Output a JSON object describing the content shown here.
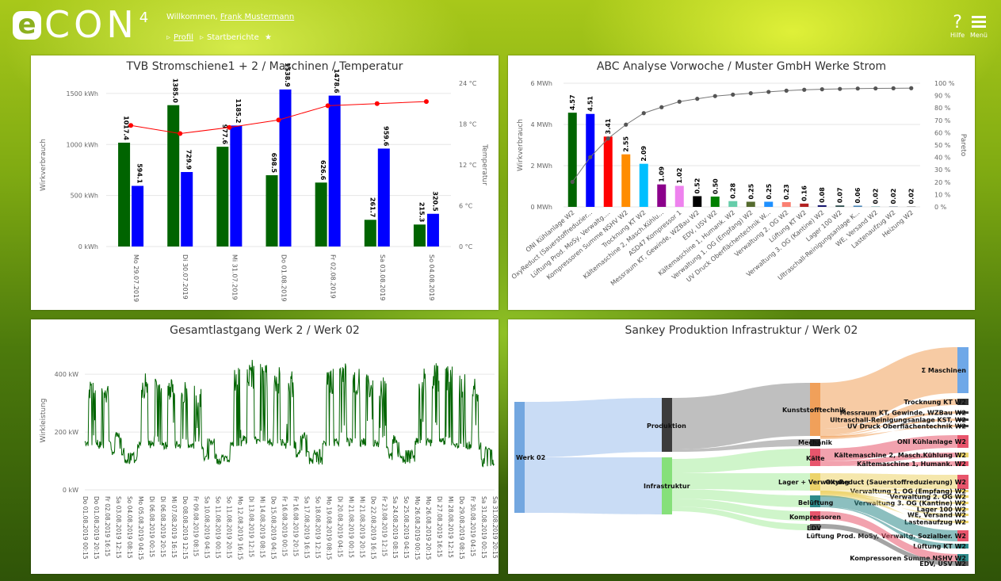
{
  "header": {
    "logo_main": "CON",
    "logo_e": "e",
    "logo_sup": "4",
    "welcome_prefix": "Willkommen, ",
    "user_name": "Frank Mustermann",
    "breadcrumb_profile": "Profil",
    "breadcrumb_current": "Startberichte",
    "star": "★",
    "help_icon": "?",
    "help_label": "Hilfe",
    "menu_label": "Menü"
  },
  "panels": {
    "p1_title": "TVB Stromschiene1 + 2 / Maschinen / Temperatur",
    "p2_title": "ABC Analyse Vorwoche / Muster GmbH Werke Strom",
    "p3_title": "Gesamtlastgang Werk 2 / Werk 02",
    "p4_title": "Sankey Produktion Infrastruktur / Werk 02"
  },
  "chart_data": [
    {
      "type": "bar",
      "title": "TVB Stromschiene1 + 2 / Maschinen / Temperatur",
      "ylabel": "Wirkverbrauch",
      "y2label": "Temperatur",
      "categories": [
        "Mo 29.07.2019",
        "Di 30.07.2019",
        "Mi 31.07.2019",
        "Do 01.08.2019",
        "Fr 02.08.2019",
        "Sa 03.08.2019",
        "So 04.08.2019"
      ],
      "series": [
        {
          "values": [
            1017.4,
            1385.0,
            977.6,
            698.5,
            626.6,
            261.7,
            215.3
          ],
          "color": "#006400"
        },
        {
          "values": [
            594.1,
            729.9,
            1185.2,
            1538.9,
            1478.6,
            959.6,
            320.5
          ],
          "color": "#0000ff"
        },
        {
          "values": [
            17.8,
            16.6,
            17.5,
            18.6,
            20.7,
            21.0,
            21.3
          ],
          "color": "#ff0000",
          "axis": "right",
          "kind": "line"
        }
      ],
      "value_labels_1": [
        "1017.4",
        "1385.0",
        "977.6",
        "698.5",
        "626.6",
        "261.7",
        "215.3"
      ],
      "value_labels_2": [
        "594.1",
        "729.9",
        "1185.2",
        "1538.9",
        "1478.6",
        "959.6",
        "320.5"
      ],
      "yticks": [
        "0 kWh",
        "500 kWh",
        "1000 kWh",
        "1500 kWh"
      ],
      "y2ticks": [
        "0 °C",
        "6 °C",
        "12 °C",
        "18 °C",
        "24 °C"
      ],
      "ylim": [
        0,
        1600
      ],
      "y2lim": [
        0,
        24
      ]
    },
    {
      "type": "bar",
      "title": "ABC Analyse Vorwoche / Muster GmbH Werke Strom",
      "ylabel": "Wirkverbrauch",
      "y2label": "Pareto",
      "categories": [
        "ONI Kühlanlage W2",
        "OxyReduct (Sauerstoffreduzier...",
        "Lüftung Prod. MoSy, Verwaltg....",
        "Kompressoren Summe NSHV W2",
        "Trocknung KT W2",
        "Kältemaschine 2, Masch.Kühlu...",
        "ASD47 Kompressor 1",
        "Messraum KT, Gewinde, WZBau W2",
        "EDV, USV W2",
        "Kältemaschine 1, Humank. W2",
        "Verwaltung 1. OG (Empfang) W2",
        "UV Druck Oberflächentechnik W...",
        "Verwaltung 2. OG W2",
        "Lüftung KT W2",
        "Verwaltung 3. OG (Kantine) W2",
        "Lager 100 W2",
        "Ultraschall-Reinigungsanlage K...",
        "WE, Versand W2",
        "Lastenaufzug W2",
        "Heizung W2"
      ],
      "values": [
        4.57,
        4.51,
        3.41,
        2.55,
        2.09,
        1.09,
        1.02,
        0.52,
        0.5,
        0.28,
        0.25,
        0.25,
        0.23,
        0.16,
        0.08,
        0.07,
        0.06,
        0.02,
        0.02,
        0.02
      ],
      "value_labels": [
        "4.57",
        "4.51",
        "3.41",
        "2.55",
        "2.09",
        "1.09",
        "1.02",
        "0.52",
        "0.50",
        "0.28",
        "0.25",
        "0.25",
        "0.23",
        "0.16",
        "0.08",
        "0.07",
        "0.06",
        "0.02",
        "0.02",
        "0.02"
      ],
      "colors": [
        "#006400",
        "#0000ff",
        "#ff0000",
        "#ff8c00",
        "#00bfff",
        "#8b008b",
        "#ee82ee",
        "#000000",
        "#008000",
        "#66cdaa",
        "#556b2f",
        "#1e90ff",
        "#fa8072",
        "#b22222",
        "#191970",
        "#2f4f4f",
        "#4682b4",
        "#5f9ea0",
        "#708090",
        "#808080"
      ],
      "pareto": [
        20.2,
        40.2,
        55.3,
        66.5,
        75.8,
        80.6,
        85.1,
        87.4,
        89.6,
        90.8,
        91.9,
        93.0,
        94.0,
        94.7,
        95.1,
        95.4,
        95.7,
        95.8,
        95.9,
        96.0
      ],
      "yticks": [
        "0 MWh",
        "2 MWh",
        "4 MWh",
        "6 MWh"
      ],
      "y2ticks": [
        "0 %",
        "10 %",
        "20 %",
        "30 %",
        "40 %",
        "50 %",
        "60 %",
        "70 %",
        "80 %",
        "90 %",
        "100 %"
      ],
      "ylim": [
        0,
        6
      ],
      "y2lim": [
        0,
        100
      ]
    },
    {
      "type": "line",
      "title": "Gesamtlastgang Werk 2 / Werk 02",
      "ylabel": "Wirkleistung",
      "yticks": [
        "0 kW",
        "200 kW",
        "400 kW"
      ],
      "ylim": [
        0,
        480
      ],
      "xticks": [
        "Do 01.08.2019 00:15",
        "Do 01.08.2019 20:15",
        "Fr 02.08.2019 16:15",
        "Sa 03.08.2019 12:15",
        "So 04.08.2019 08:15",
        "Mo 05.08.2019 04:15",
        "Di 06.08.2019 00:15",
        "Di 06.08.2019 20:15",
        "Mi 07.08.2019 16:15",
        "Do 08.08.2019 12:15",
        "Fr 09.08.2019 08:15",
        "Sa 10.08.2019 04:15",
        "So 11.08.2019 00:15",
        "So 11.08.2019 20:15",
        "Mo 12.08.2019 16:15",
        "Di 13.08.2019 12:15",
        "Mi 14.08.2019 08:15",
        "Do 15.08.2019 04:15",
        "Fr 16.08.2019 00:15",
        "Fr 16.08.2019 20:15",
        "Sa 17.08.2019 16:15",
        "So 18.08.2019 12:15",
        "Mo 19.08.2019 08:15",
        "Di 20.08.2019 04:15",
        "Mi 21.08.2019 00:15",
        "Mi 21.08.2019 20:15",
        "Do 22.08.2019 16:15",
        "Fr 23.08.2019 12:15",
        "Sa 24.08.2019 08:15",
        "So 25.08.2019 04:15",
        "Mo 26.08.2019 00:15",
        "Mo 26.08.2019 20:15",
        "Di 27.08.2019 16:15",
        "Mi 28.08.2019 12:15",
        "Do 29.08.2019 08:15",
        "Fr 30.08.2019 04:15",
        "Sa 31.08.2019 00:15",
        "Sa 31.08.2019 20:15"
      ],
      "series": [
        {
          "color": "#006400",
          "daily_pattern": [
            [
              "Do 01.08.2019",
              380,
              150
            ],
            [
              "Fr 02.08.2019",
              370,
              140
            ],
            [
              "Sa 03.08.2019",
              200,
              120
            ],
            [
              "So 04.08.2019",
              130,
              90
            ],
            [
              "Mo 05.08.2019",
              410,
              140
            ],
            [
              "Di 06.08.2019",
              400,
              150
            ],
            [
              "Mi 07.08.2019",
              390,
              140
            ],
            [
              "Do 08.08.2019",
              380,
              140
            ],
            [
              "Fr 09.08.2019",
              360,
              140
            ],
            [
              "Sa 10.08.2019",
              180,
              100
            ],
            [
              "So 11.08.2019",
              120,
              85
            ],
            [
              "Mo 12.08.2019",
              440,
              150
            ],
            [
              "Di 13.08.2019",
              450,
              160
            ],
            [
              "Mi 14.08.2019",
              440,
              150
            ],
            [
              "Do 15.08.2019",
              430,
              150
            ],
            [
              "Fr 16.08.2019",
              410,
              140
            ],
            [
              "Sa 17.08.2019",
              200,
              110
            ],
            [
              "So 18.08.2019",
              140,
              85
            ],
            [
              "Mo 19.08.2019",
              430,
              150
            ],
            [
              "Di 20.08.2019",
              440,
              150
            ],
            [
              "Mi 21.08.2019",
              420,
              150
            ],
            [
              "Do 22.08.2019",
              400,
              150
            ],
            [
              "Fr 23.08.2019",
              390,
              140
            ],
            [
              "Sa 24.08.2019",
              190,
              100
            ],
            [
              "So 25.08.2019",
              140,
              90
            ],
            [
              "Mo 26.08.2019",
              420,
              150
            ],
            [
              "Di 27.08.2019",
              440,
              150
            ],
            [
              "Mi 28.08.2019",
              430,
              150
            ],
            [
              "Do 29.08.2019",
              410,
              140
            ],
            [
              "Fr 30.08.2019",
              390,
              140
            ],
            [
              "Sa 31.08.2019",
              150,
              80
            ]
          ]
        }
      ]
    },
    {
      "type": "sankey",
      "title": "Sankey Produktion Infrastruktur / Werk 02",
      "nodes": [
        {
          "id": "werk02",
          "label": "Werk 02",
          "col": 0
        },
        {
          "id": "prod",
          "label": "Produktion",
          "col": 1
        },
        {
          "id": "infra",
          "label": "Infrastruktur",
          "col": 1
        },
        {
          "id": "kunst",
          "label": "Kunststofftechnik",
          "col": 2
        },
        {
          "id": "mech",
          "label": "Mechanik",
          "col": 2
        },
        {
          "id": "kaelte",
          "label": "Kälte",
          "col": 2
        },
        {
          "id": "lager",
          "label": "Lager + Verwaltung",
          "col": 2
        },
        {
          "id": "belueft",
          "label": "Belüftung",
          "col": 2
        },
        {
          "id": "kompr",
          "label": "Kompressoren",
          "col": 2
        },
        {
          "id": "edv",
          "label": "EDV",
          "col": 2
        }
      ],
      "leaves": [
        "Σ Maschinen",
        "Trocknung KT W2",
        "Messraum KT, Gewinde, WZBau W2",
        "Ultraschall-Reinigungsanlage KST, W2",
        "UV Druck Oberflächentechnik W2",
        "ONI Kühlanlage W2",
        "Kältemaschine 2, Masch.Kühlung W2",
        "Kältemaschine 1, Humank. W2",
        "OxyReduct (Sauerstoffreduzierung) W2",
        "Verwaltung 1. OG (Empfang) W2",
        "Verwaltung 2. OG W2",
        "Verwaltung 3. OG (Kantine) W2",
        "Lager 100 W2",
        "WE, Versand W2",
        "Lastenaufzug W2",
        "Lüftung Prod. MoSy, Verwaltg, Sozialber. W2",
        "Lüftung KT W2",
        "Kompressoren Summe NSHV W2",
        "EDV, USV W2"
      ]
    }
  ]
}
